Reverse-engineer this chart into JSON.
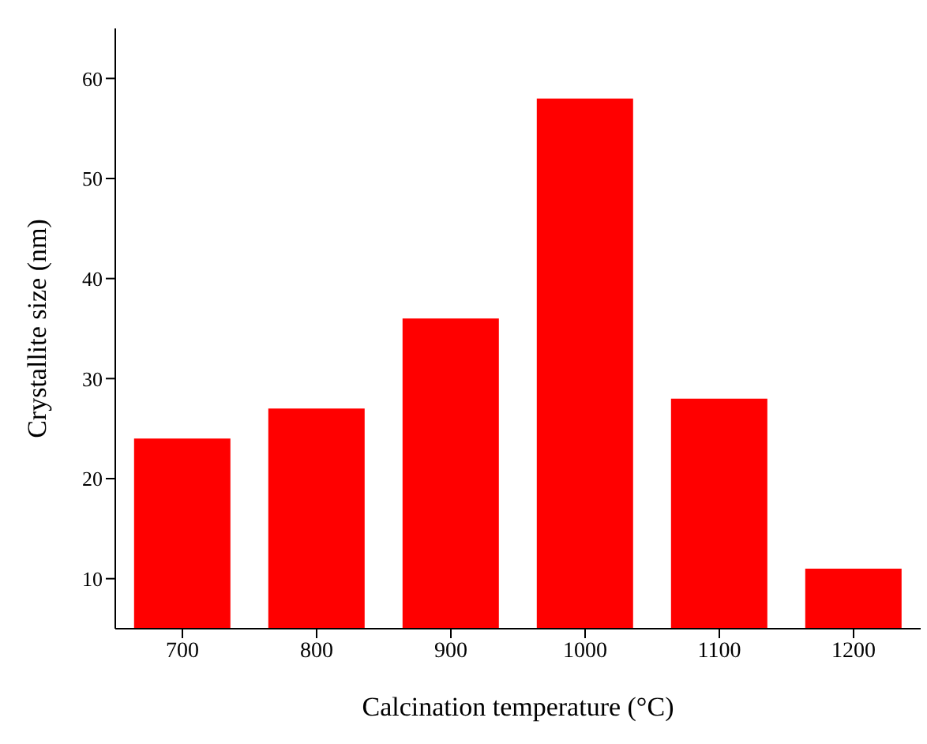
{
  "chart_data": {
    "type": "bar",
    "xlabel": "Calcination temperature (°C)",
    "ylabel": "Crystallite size (nm)",
    "categories": [
      "700",
      "800",
      "900",
      "1000",
      "1100",
      "1200"
    ],
    "values": [
      24,
      27,
      36,
      58,
      28,
      11
    ],
    "color": "#ff0000",
    "ylim": [
      5,
      65
    ],
    "yticks": [
      10,
      20,
      30,
      40,
      50,
      60
    ],
    "grid": false,
    "legend": false
  }
}
